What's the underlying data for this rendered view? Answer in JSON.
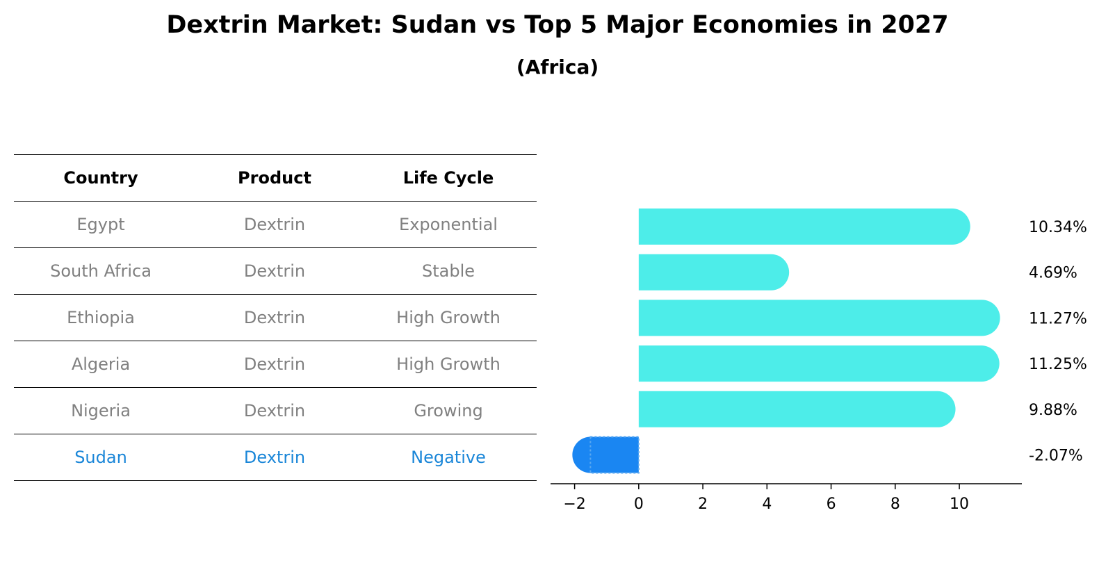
{
  "title": "Dextrin Market: Sudan vs Top 5 Major Economies in 2027",
  "subtitle": "(Africa)",
  "table": {
    "headers": [
      "Country",
      "Product",
      "Life Cycle"
    ],
    "rows": [
      [
        "Egypt",
        "Dextrin",
        "Exponential"
      ],
      [
        "South Africa",
        "Dextrin",
        "Stable"
      ],
      [
        "Ethiopia",
        "Dextrin",
        "High Growth"
      ],
      [
        "Algeria",
        "Dextrin",
        "High Growth"
      ],
      [
        "Nigeria",
        "Dextrin",
        "Growing"
      ],
      [
        "Sudan",
        "Dextrin",
        "Negative"
      ]
    ],
    "highlight_row": 5
  },
  "chart_data": {
    "type": "bar",
    "orientation": "horizontal",
    "categories": [
      "Egypt",
      "South Africa",
      "Ethiopia",
      "Algeria",
      "Nigeria",
      "Sudan"
    ],
    "values": [
      10.34,
      4.69,
      11.27,
      11.25,
      9.88,
      -2.07
    ],
    "value_labels": [
      "10.34%",
      "4.69%",
      "11.27%",
      "11.25%",
      "9.88%",
      "-2.07%"
    ],
    "xticks": [
      -2,
      0,
      2,
      4,
      6,
      8,
      10
    ],
    "xtick_labels": [
      "−2",
      "0",
      "2",
      "4",
      "6",
      "8",
      "10"
    ],
    "xlim": [
      -2.75,
      11.95
    ],
    "colors": {
      "positive": "#4dede9",
      "negative": "#1a86f2"
    },
    "grid": false
  }
}
